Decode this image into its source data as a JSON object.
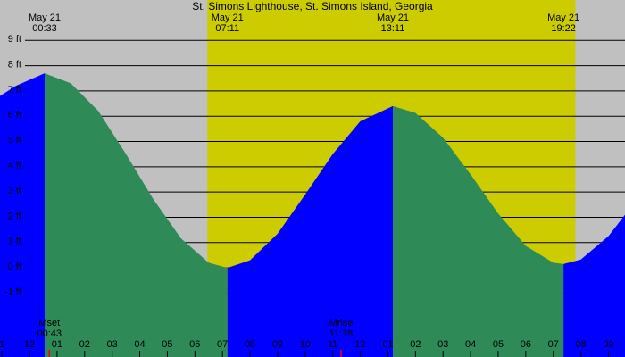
{
  "chart_data": {
    "type": "tide",
    "title": "St. Simons Lighthouse, St. Simons Island, Georgia",
    "night_color": "#c0c0c0",
    "day_color": "#cccc00",
    "day": [
      6.45,
      19.8
    ],
    "rise_color": "#0000ff",
    "fall_color": "#2e8b57",
    "grid": true,
    "xlim": [
      -1.07,
      21.6
    ],
    "ylim": [
      -3.53,
      10.6
    ],
    "yticks": [
      {
        "value": 9,
        "label": "9 ft"
      },
      {
        "value": 8,
        "label": "8 ft"
      },
      {
        "value": 7,
        "label": "7 ft"
      },
      {
        "value": 6,
        "label": "6 ft"
      },
      {
        "value": 5,
        "label": "5 ft"
      },
      {
        "value": 4,
        "label": "4 ft"
      },
      {
        "value": 3,
        "label": "3 ft"
      },
      {
        "value": 2,
        "label": "2 ft"
      },
      {
        "value": 1,
        "label": "1 ft"
      },
      {
        "value": 0,
        "label": "0 ft"
      },
      {
        "value": -1,
        "label": "-1 ft"
      }
    ],
    "xticks": [
      {
        "value": -1,
        "label": "1"
      },
      {
        "value": 0,
        "label": "12"
      },
      {
        "value": 1,
        "label": "01"
      },
      {
        "value": 2,
        "label": "02"
      },
      {
        "value": 3,
        "label": "03"
      },
      {
        "value": 4,
        "label": "04"
      },
      {
        "value": 5,
        "label": "05"
      },
      {
        "value": 6,
        "label": "06"
      },
      {
        "value": 7,
        "label": "07"
      },
      {
        "value": 8,
        "label": "08"
      },
      {
        "value": 9,
        "label": "09"
      },
      {
        "value": 10,
        "label": "10"
      },
      {
        "value": 11,
        "label": "11"
      },
      {
        "value": 12,
        "label": "12"
      },
      {
        "value": 13,
        "label": "01"
      },
      {
        "value": 14,
        "label": "02"
      },
      {
        "value": 15,
        "label": "03"
      },
      {
        "value": 16,
        "label": "04"
      },
      {
        "value": 17,
        "label": "05"
      },
      {
        "value": 18,
        "label": "06"
      },
      {
        "value": 19,
        "label": "07"
      },
      {
        "value": 20,
        "label": "08"
      },
      {
        "value": 21,
        "label": "09"
      }
    ],
    "tides": [
      {
        "date": "May 21",
        "time": "00:33",
        "hour": 0.55
      },
      {
        "date": "May 21",
        "time": "07:11",
        "hour": 7.18
      },
      {
        "date": "May 21",
        "time": "13:11",
        "hour": 13.18
      },
      {
        "date": "May 21",
        "time": "19:22",
        "hour": 19.37
      }
    ],
    "moon": [
      {
        "label": "Mset",
        "time": "00:43",
        "hour": 0.72,
        "color": "#ff0000"
      },
      {
        "label": "Mrise",
        "time": "11:18",
        "hour": 11.3,
        "color": "#ff0000"
      }
    ],
    "series": [
      {
        "x": [
          -1.07,
          -0.5,
          0.55,
          1.5,
          2.5,
          3.5,
          4.5,
          5.5,
          6.5,
          7.18,
          8,
          9,
          10,
          11,
          12,
          13.18,
          14,
          15,
          16,
          17,
          18,
          19,
          19.37,
          20,
          21,
          21.6
        ],
        "values": [
          6.8,
          7.2,
          7.7,
          7.3,
          6.2,
          4.5,
          2.7,
          1.16,
          0.2,
          0.0,
          0.3,
          1.35,
          2.9,
          4.5,
          5.8,
          6.4,
          6.13,
          5.15,
          3.7,
          2.15,
          0.87,
          0.2,
          0.15,
          0.33,
          1.25,
          2.1
        ]
      }
    ]
  }
}
